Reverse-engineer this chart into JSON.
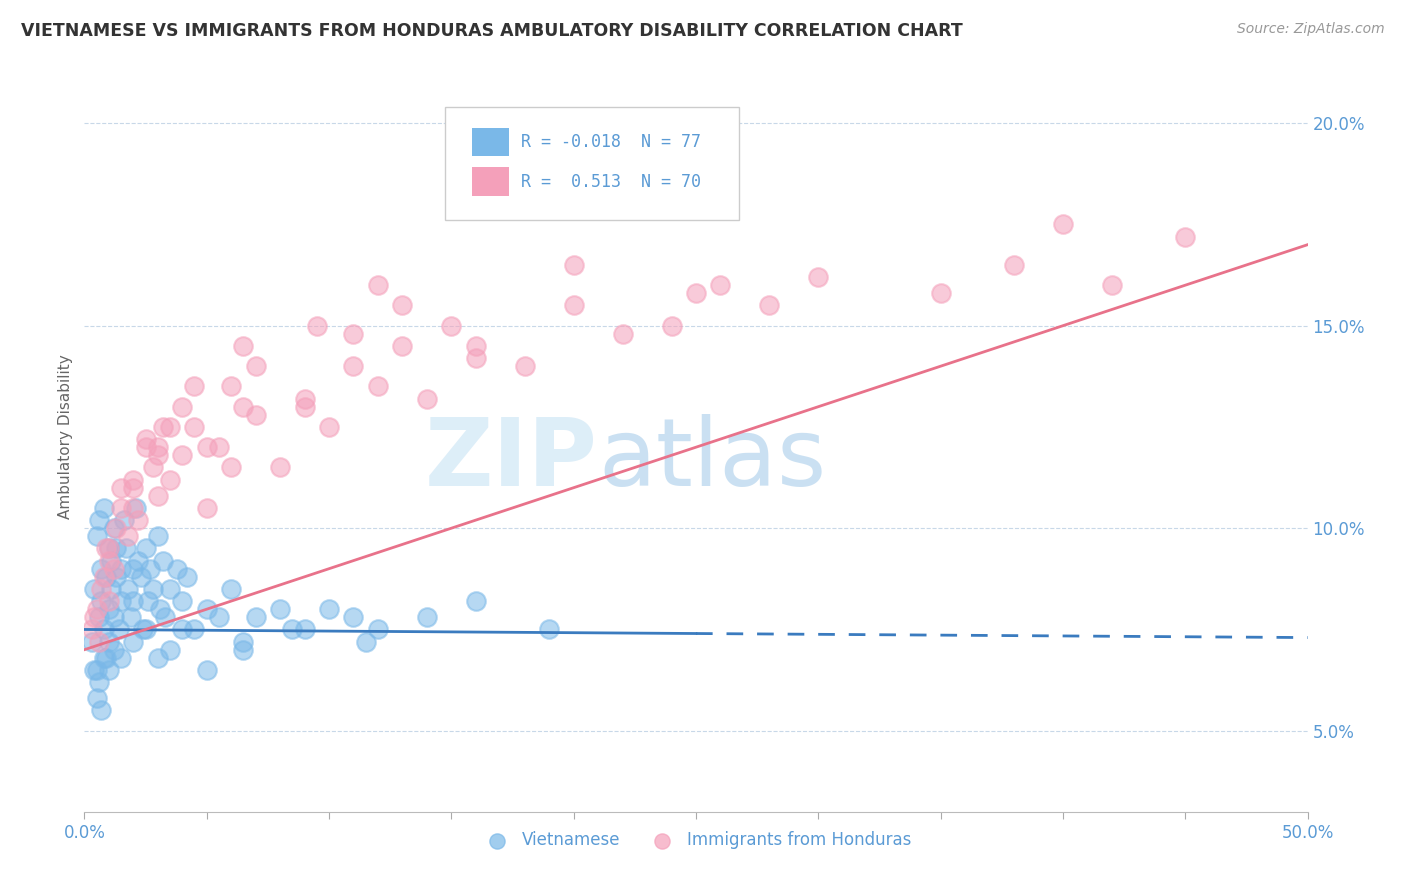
{
  "title": "VIETNAMESE VS IMMIGRANTS FROM HONDURAS AMBULATORY DISABILITY CORRELATION CHART",
  "source": "Source: ZipAtlas.com",
  "ylabel": "Ambulatory Disability",
  "x_min": 0.0,
  "x_max": 50.0,
  "y_min": 3.0,
  "y_max": 21.5,
  "ytick_labels": [
    "5.0%",
    "10.0%",
    "15.0%",
    "20.0%"
  ],
  "ytick_values": [
    5.0,
    10.0,
    15.0,
    20.0
  ],
  "vietnamese_color": "#7ab8e8",
  "honduras_color": "#f4a0ba",
  "vietnamese_line_color": "#3a7bbf",
  "honduras_line_color": "#e8728a",
  "legend_R1": "-0.018",
  "legend_N1": "77",
  "legend_R2": "0.513",
  "legend_N2": "70",
  "watermark_zip": "ZIP",
  "watermark_atlas": "atlas",
  "background_color": "#ffffff",
  "grid_color": "#c8d8e8",
  "title_color": "#333333",
  "axis_label_color": "#5b9bd5",
  "viet_line_y0": 7.5,
  "viet_line_y1": 7.3,
  "viet_line_x0": 0.0,
  "viet_line_x1": 25.0,
  "hond_line_y0": 7.0,
  "hond_line_y1": 17.0,
  "hond_line_x0": 0.0,
  "hond_line_x1": 50.0,
  "vietnamese_scatter_x": [
    0.3,
    0.4,
    0.5,
    0.5,
    0.6,
    0.6,
    0.7,
    0.7,
    0.8,
    0.8,
    0.9,
    0.9,
    1.0,
    1.0,
    1.0,
    1.1,
    1.1,
    1.2,
    1.2,
    1.3,
    1.3,
    1.4,
    1.5,
    1.5,
    1.6,
    1.7,
    1.8,
    1.9,
    2.0,
    2.0,
    2.1,
    2.2,
    2.3,
    2.4,
    2.5,
    2.6,
    2.7,
    2.8,
    3.0,
    3.1,
    3.2,
    3.3,
    3.5,
    3.8,
    4.0,
    4.2,
    4.5,
    5.0,
    5.5,
    6.0,
    6.5,
    7.0,
    8.0,
    9.0,
    10.0,
    11.0,
    12.0,
    14.0,
    16.0,
    19.0,
    0.4,
    0.5,
    0.6,
    0.7,
    0.8,
    1.0,
    1.2,
    1.5,
    2.0,
    2.5,
    3.0,
    3.5,
    4.0,
    5.0,
    6.5,
    8.5,
    11.5
  ],
  "vietnamese_scatter_y": [
    7.2,
    8.5,
    9.8,
    6.5,
    10.2,
    7.8,
    9.0,
    8.2,
    10.5,
    7.5,
    8.8,
    6.8,
    9.5,
    8.0,
    7.2,
    9.2,
    8.5,
    10.0,
    7.8,
    9.5,
    8.8,
    7.5,
    9.0,
    8.2,
    10.2,
    9.5,
    8.5,
    7.8,
    9.0,
    8.2,
    10.5,
    9.2,
    8.8,
    7.5,
    9.5,
    8.2,
    9.0,
    8.5,
    9.8,
    8.0,
    9.2,
    7.8,
    8.5,
    9.0,
    8.2,
    8.8,
    7.5,
    8.0,
    7.8,
    8.5,
    7.2,
    7.8,
    8.0,
    7.5,
    8.0,
    7.8,
    7.5,
    7.8,
    8.2,
    7.5,
    6.5,
    5.8,
    6.2,
    5.5,
    6.8,
    6.5,
    7.0,
    6.8,
    7.2,
    7.5,
    6.8,
    7.0,
    7.5,
    6.5,
    7.0,
    7.5,
    7.2
  ],
  "honduras_scatter_x": [
    0.3,
    0.5,
    0.6,
    0.8,
    0.9,
    1.0,
    1.2,
    1.5,
    1.8,
    2.0,
    2.2,
    2.5,
    2.8,
    3.0,
    3.2,
    3.5,
    4.0,
    4.5,
    5.0,
    5.5,
    6.0,
    6.5,
    7.0,
    8.0,
    9.0,
    10.0,
    11.0,
    12.0,
    13.0,
    14.0,
    15.0,
    16.0,
    18.0,
    20.0,
    22.0,
    24.0,
    26.0,
    28.0,
    30.0,
    35.0,
    38.0,
    40.0,
    42.0,
    45.0,
    1.0,
    1.5,
    2.0,
    2.5,
    3.0,
    3.5,
    4.0,
    5.0,
    6.0,
    7.0,
    9.0,
    11.0,
    13.0,
    16.0,
    20.0,
    25.0,
    0.4,
    0.7,
    1.0,
    1.3,
    2.0,
    3.0,
    4.5,
    6.5,
    9.5,
    12.0
  ],
  "honduras_scatter_y": [
    7.5,
    8.0,
    7.2,
    8.8,
    9.5,
    8.2,
    9.0,
    10.5,
    9.8,
    11.0,
    10.2,
    12.0,
    11.5,
    10.8,
    12.5,
    11.2,
    11.8,
    12.5,
    10.5,
    12.0,
    11.5,
    13.0,
    12.8,
    11.5,
    13.0,
    12.5,
    14.0,
    13.5,
    14.5,
    13.2,
    15.0,
    14.5,
    14.0,
    15.5,
    14.8,
    15.0,
    16.0,
    15.5,
    16.2,
    15.8,
    16.5,
    17.5,
    16.0,
    17.2,
    9.5,
    11.0,
    10.5,
    12.2,
    11.8,
    12.5,
    13.0,
    12.0,
    13.5,
    14.0,
    13.2,
    14.8,
    15.5,
    14.2,
    16.5,
    15.8,
    7.8,
    8.5,
    9.2,
    10.0,
    11.2,
    12.0,
    13.5,
    14.5,
    15.0,
    16.0
  ]
}
